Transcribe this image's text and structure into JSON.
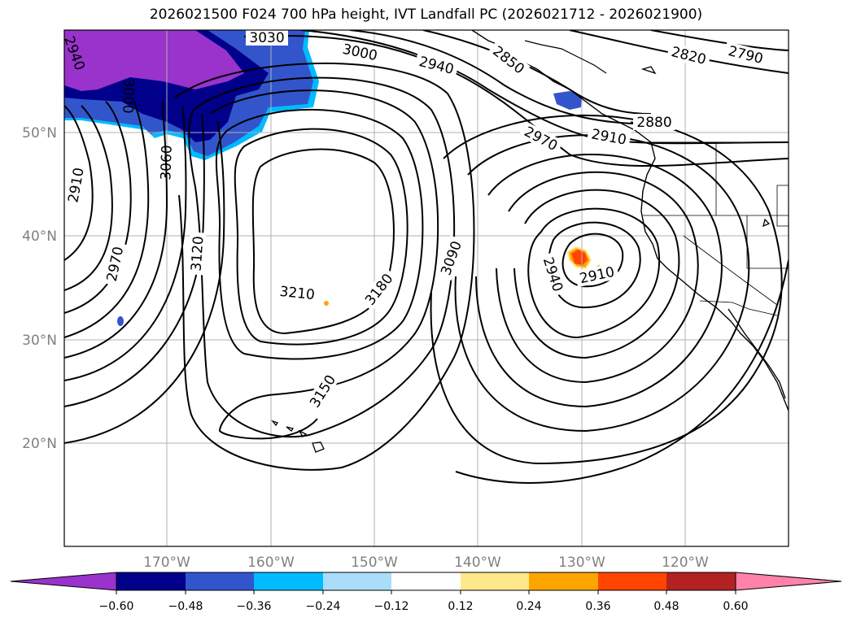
{
  "title": "2026021500 F024 700 hPa height, IVT Landfall PC (2026021712 - 2026021900)",
  "map": {
    "lat_labels": [
      "50°N",
      "40°N",
      "30°N",
      "20°N"
    ],
    "lon_labels": [
      "170°W",
      "160°W",
      "150°W",
      "140°W",
      "130°W",
      "120°W"
    ],
    "contour_labels": [
      "3030",
      "3000",
      "2940",
      "2850",
      "2820",
      "2790",
      "2880",
      "2910",
      "2970",
      "2940",
      "3060",
      "3000",
      "2910",
      "2970",
      "3120",
      "3210",
      "3180",
      "3090",
      "2940",
      "2910",
      "3150"
    ],
    "grid": true
  },
  "colorbar": {
    "ticks": [
      "−0.60",
      "−0.48",
      "−0.36",
      "−0.24",
      "−0.12",
      "0.12",
      "0.24",
      "0.36",
      "0.48",
      "0.60"
    ],
    "colors": [
      "#9933cc",
      "#00008b",
      "#3355cc",
      "#00bbff",
      "#aaddfa",
      "#ffffff",
      "#ffe88a",
      "#ffa500",
      "#ff4500",
      "#b22222",
      "#ff82a9"
    ]
  }
}
